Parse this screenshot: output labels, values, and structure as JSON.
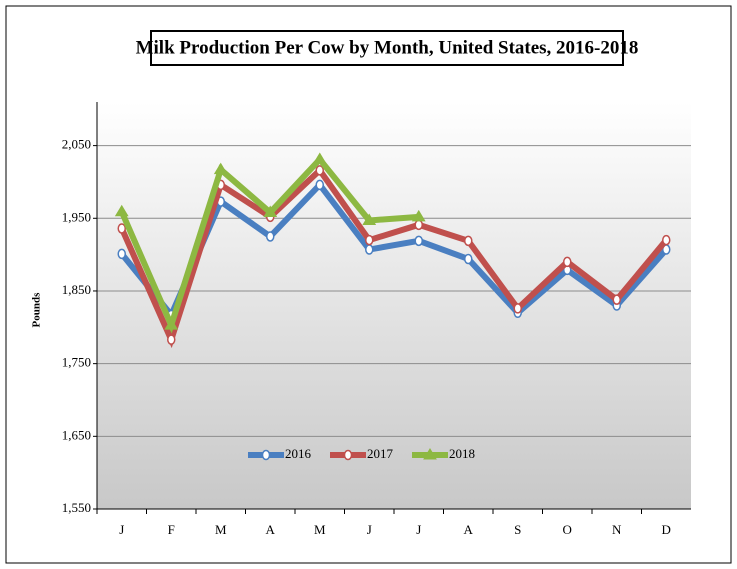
{
  "chart_data": {
    "type": "line",
    "title": "Milk Production Per Cow by Month, United States, 2016-2018",
    "y_label": "Pounds",
    "categories": [
      "J",
      "F",
      "M",
      "A",
      "M",
      "J",
      "J",
      "A",
      "S",
      "O",
      "N",
      "D"
    ],
    "series": [
      {
        "name": "2016",
        "color": "#4a7fc1",
        "marker": "circle",
        "values": [
          1901,
          1817,
          1973,
          1925,
          1996,
          1907,
          1919,
          1894,
          1820,
          1879,
          1830,
          1907
        ]
      },
      {
        "name": "2017",
        "color": "#c0504d",
        "marker": "circle",
        "values": [
          1936,
          1783,
          1996,
          1952,
          2016,
          1920,
          1941,
          1919,
          1826,
          1890,
          1838,
          1920
        ]
      },
      {
        "name": "2018",
        "color": "#8db842",
        "marker": "triangle",
        "values": [
          1959,
          1803,
          2017,
          1958,
          2031,
          1947,
          1952,
          null,
          null,
          null,
          null,
          null
        ]
      }
    ],
    "ylim": [
      1550,
      2110
    ],
    "yticks": [
      {
        "value": 1550,
        "label": "1,550"
      },
      {
        "value": 1650,
        "label": "1,650"
      },
      {
        "value": 1750,
        "label": "1,750"
      },
      {
        "value": 1850,
        "label": "1,850"
      },
      {
        "value": 1950,
        "label": "1,950"
      },
      {
        "value": 2050,
        "label": "2,050"
      }
    ],
    "grid": true,
    "legend": "bottom"
  }
}
